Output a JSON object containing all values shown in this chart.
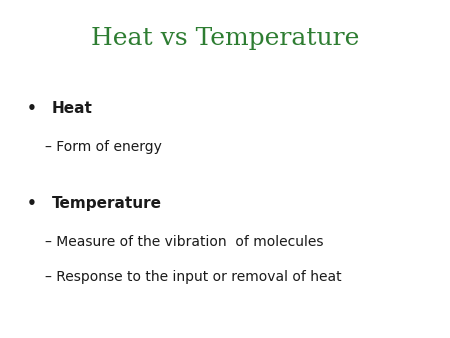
{
  "title": "Heat vs Temperature",
  "title_color": "#2e7d32",
  "title_fontsize": 18,
  "background_color": "#ffffff",
  "bullet1_text": "Heat",
  "bullet1_sub": [
    "– Form of energy"
  ],
  "bullet2_text": "Temperature",
  "bullet2_sub": [
    "– Measure of the vibration  of molecules",
    "– Response to the input or removal of heat"
  ],
  "bullet_color": "#1a1a1a",
  "bullet_fontsize": 11,
  "sub_fontsize": 10,
  "bullet_symbol": "•"
}
